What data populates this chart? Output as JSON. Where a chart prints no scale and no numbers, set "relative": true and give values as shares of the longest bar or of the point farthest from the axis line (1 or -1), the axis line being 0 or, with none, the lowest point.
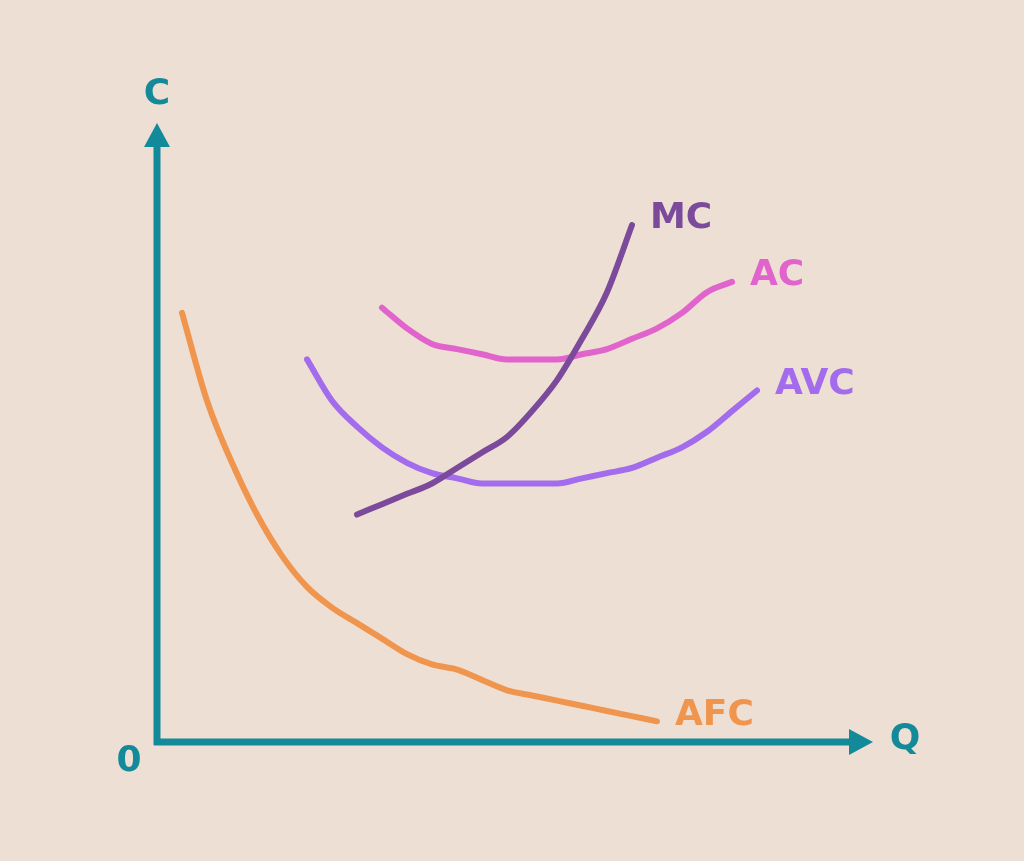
{
  "chart_data": {
    "type": "line",
    "relative": true,
    "xlabel": "Q",
    "ylabel": "C",
    "annotations": [
      "0"
    ],
    "legend": false,
    "marker": "none",
    "categories": [
      null,
      null,
      null,
      null,
      null,
      null,
      null,
      null,
      null,
      null,
      null,
      null,
      null,
      null,
      null,
      null,
      null,
      null,
      null,
      null,
      null,
      null,
      null,
      null,
      null,
      null,
      null,
      null,
      null
    ],
    "series": [
      {
        "name": "MC",
        "color": "#7b4a9a",
        "values": [
          null,
          null,
          null,
          null,
          null,
          null,
          null,
          null,
          0.44,
          0.46,
          0.48,
          0.5,
          0.53,
          0.56,
          0.59,
          0.64,
          0.7,
          0.78,
          0.87,
          1,
          null,
          null,
          null,
          null,
          null,
          null,
          null,
          null,
          null
        ]
      },
      {
        "name": "AC",
        "color": "#e064cc",
        "values": [
          null,
          null,
          null,
          null,
          null,
          null,
          null,
          null,
          null,
          0.84,
          0.8,
          0.77,
          0.76,
          0.75,
          0.74,
          0.74,
          0.74,
          0.75,
          0.76,
          0.78,
          0.8,
          0.83,
          0.87,
          0.89,
          null,
          null,
          null,
          null,
          null
        ]
      },
      {
        "name": "AVC",
        "color": "#a26cec",
        "values": [
          null,
          null,
          null,
          null,
          null,
          null,
          0.74,
          0.66,
          0.61,
          0.57,
          0.54,
          0.52,
          0.51,
          0.5,
          0.5,
          0.5,
          0.5,
          0.51,
          0.52,
          0.53,
          0.55,
          0.57,
          0.6,
          0.64,
          0.68,
          null,
          null,
          null,
          null
        ]
      },
      {
        "name": "AFC",
        "color": "#f0954e",
        "values": [
          null,
          0.83,
          0.66,
          0.54,
          0.44,
          0.36,
          0.3,
          0.26,
          0.23,
          0.2,
          0.17,
          0.15,
          0.14,
          0.12,
          0.1,
          0.09,
          0.08,
          0.07,
          0.06,
          0.05,
          0.04,
          null,
          null,
          null,
          null,
          null,
          null,
          null,
          null
        ]
      }
    ]
  }
}
